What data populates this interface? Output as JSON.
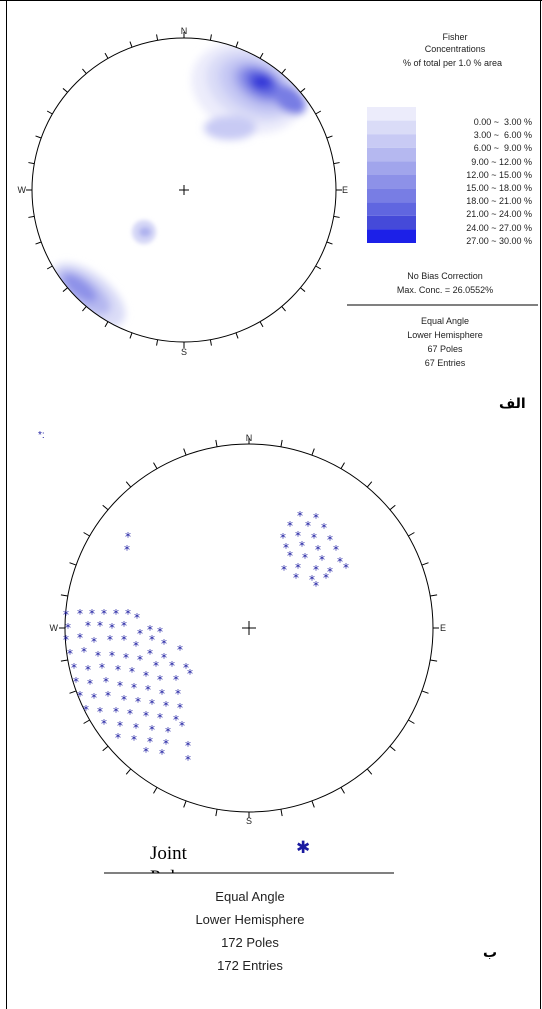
{
  "top": {
    "north": "N",
    "south": "S",
    "east": "E",
    "west": "W",
    "legend_title": [
      "Fisher",
      "Concentrations",
      "% of total per 1.0 % area"
    ],
    "legend_ranges": [
      "0.00 ~  3.00 %",
      "3.00 ~  6.00 %",
      "6.00 ~  9.00 %",
      "9.00 ~ 12.00 %",
      "12.00 ~ 15.00 %",
      "15.00 ~ 18.00 %",
      "18.00 ~ 21.00 %",
      "21.00 ~ 24.00 %",
      "24.00 ~ 27.00 %",
      "27.00 ~ 30.00 %"
    ],
    "legend_colors": [
      "#ececfb",
      "#dadcf7",
      "#c8caf4",
      "#b5b8f0",
      "#a1a5ec",
      "#8d91e8",
      "#787de4",
      "#6066e0",
      "#454ad9",
      "#1c20e8"
    ],
    "bias": "No Bias Correction",
    "max_conc": "Max. Conc. = 26.0552%",
    "projection": "Equal Angle",
    "hemisphere": "Lower Hemisphere",
    "poles": "67 Poles",
    "entries": "67 Entries",
    "figure_letter": "الف"
  },
  "bottom": {
    "north": "N",
    "south": "S",
    "east": "E",
    "west": "W",
    "corner_marker": "*:",
    "legend_label": "Joint Poles",
    "legend_symbol": "✱",
    "projection": "Equal Angle",
    "hemisphere": "Lower Hemisphere",
    "poles": "172 Poles",
    "entries": "172 Entries",
    "figure_letter": "ب",
    "pole_color": "#1a1aa0"
  }
}
